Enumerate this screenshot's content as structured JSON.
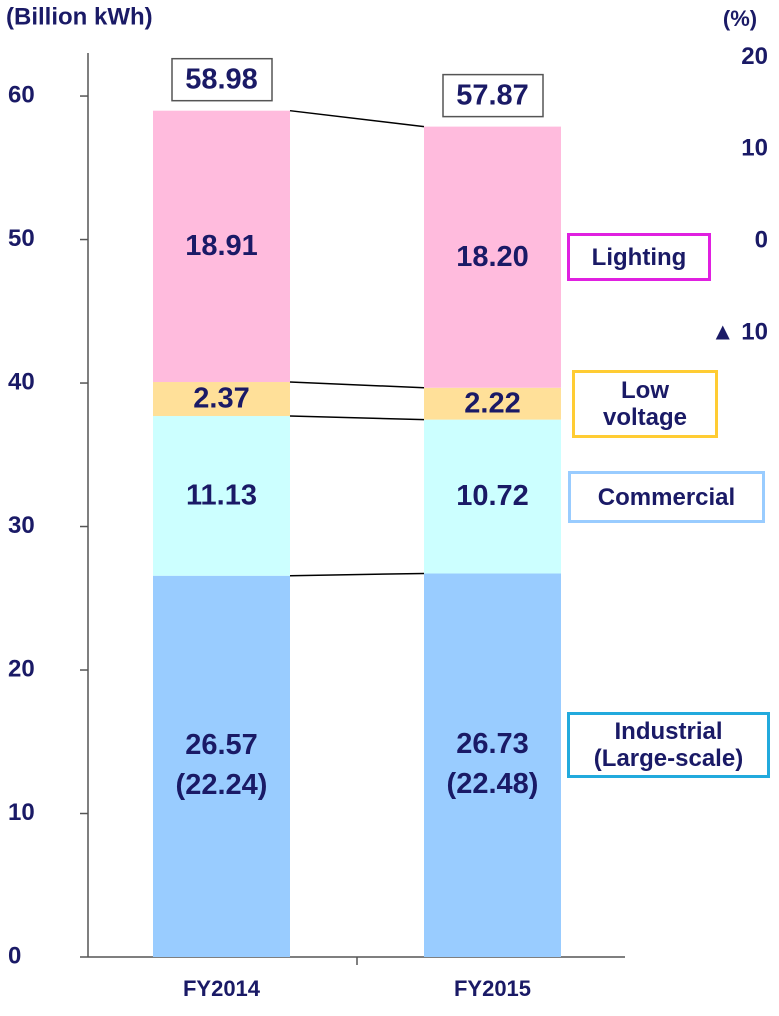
{
  "chart_data": {
    "type": "stacked_bar",
    "y_label": "(Billion kWh)",
    "y2_label": "(%)",
    "categories": [
      "FY2014",
      "FY2015"
    ],
    "series": [
      {
        "name": "Industrial (Large-scale)",
        "color": "#99ccff",
        "border_color": "#22aadd",
        "values": [
          26.57,
          26.73
        ],
        "sub_labels": [
          "(22.24)",
          "(22.48)"
        ]
      },
      {
        "name": "Commercial",
        "color": "#ccffff",
        "border_color": "#99ccff",
        "values": [
          11.13,
          10.72
        ]
      },
      {
        "name": "Low voltage",
        "color": "#ffe099",
        "border_color": "#ffcc33",
        "values": [
          2.37,
          2.22
        ]
      },
      {
        "name": "Lighting",
        "color": "#ffbbdd",
        "border_color": "#e020e0",
        "values": [
          18.91,
          18.2
        ],
        "value_labels": [
          "18.91",
          "18.20"
        ]
      }
    ],
    "totals": [
      58.98,
      57.87
    ],
    "ylim": [
      0,
      63
    ],
    "yticks": [
      0,
      10,
      20,
      30,
      40,
      50,
      60
    ],
    "y2lim": [
      -78,
      20.5
    ],
    "y2ticks": [
      20,
      10,
      0,
      {
        "value": -10,
        "label": "▲ 10"
      }
    ]
  }
}
